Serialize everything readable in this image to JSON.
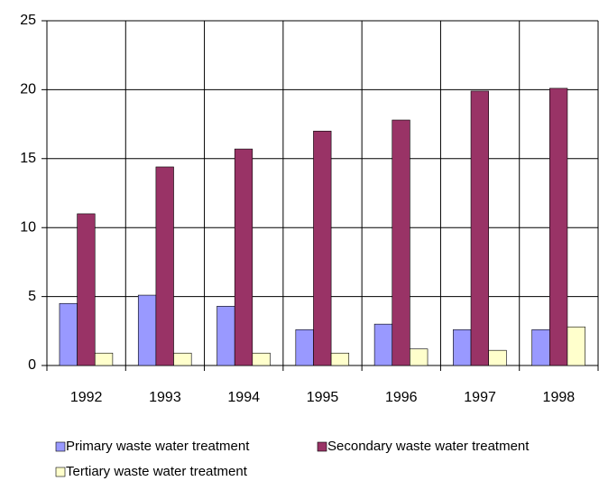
{
  "chart_data": {
    "type": "bar",
    "categories": [
      "1992",
      "1993",
      "1994",
      "1995",
      "1996",
      "1997",
      "1998"
    ],
    "series": [
      {
        "name": "Primary waste water treatment",
        "color": "#9999ff",
        "values": [
          4.5,
          5.1,
          4.3,
          2.6,
          3.0,
          2.6,
          2.6
        ]
      },
      {
        "name": "Secondary waste water treatment",
        "color": "#993366",
        "values": [
          11.0,
          14.4,
          15.7,
          17.0,
          17.8,
          19.9,
          20.1
        ]
      },
      {
        "name": "Tertiary waste water treatment",
        "color": "#ffffcc",
        "values": [
          0.9,
          0.9,
          0.9,
          0.9,
          1.2,
          1.1,
          2.8
        ]
      }
    ],
    "ylim": [
      0,
      25
    ],
    "yticks": [
      0,
      5,
      10,
      15,
      20,
      25
    ],
    "grid": true,
    "legend": "bottom"
  }
}
